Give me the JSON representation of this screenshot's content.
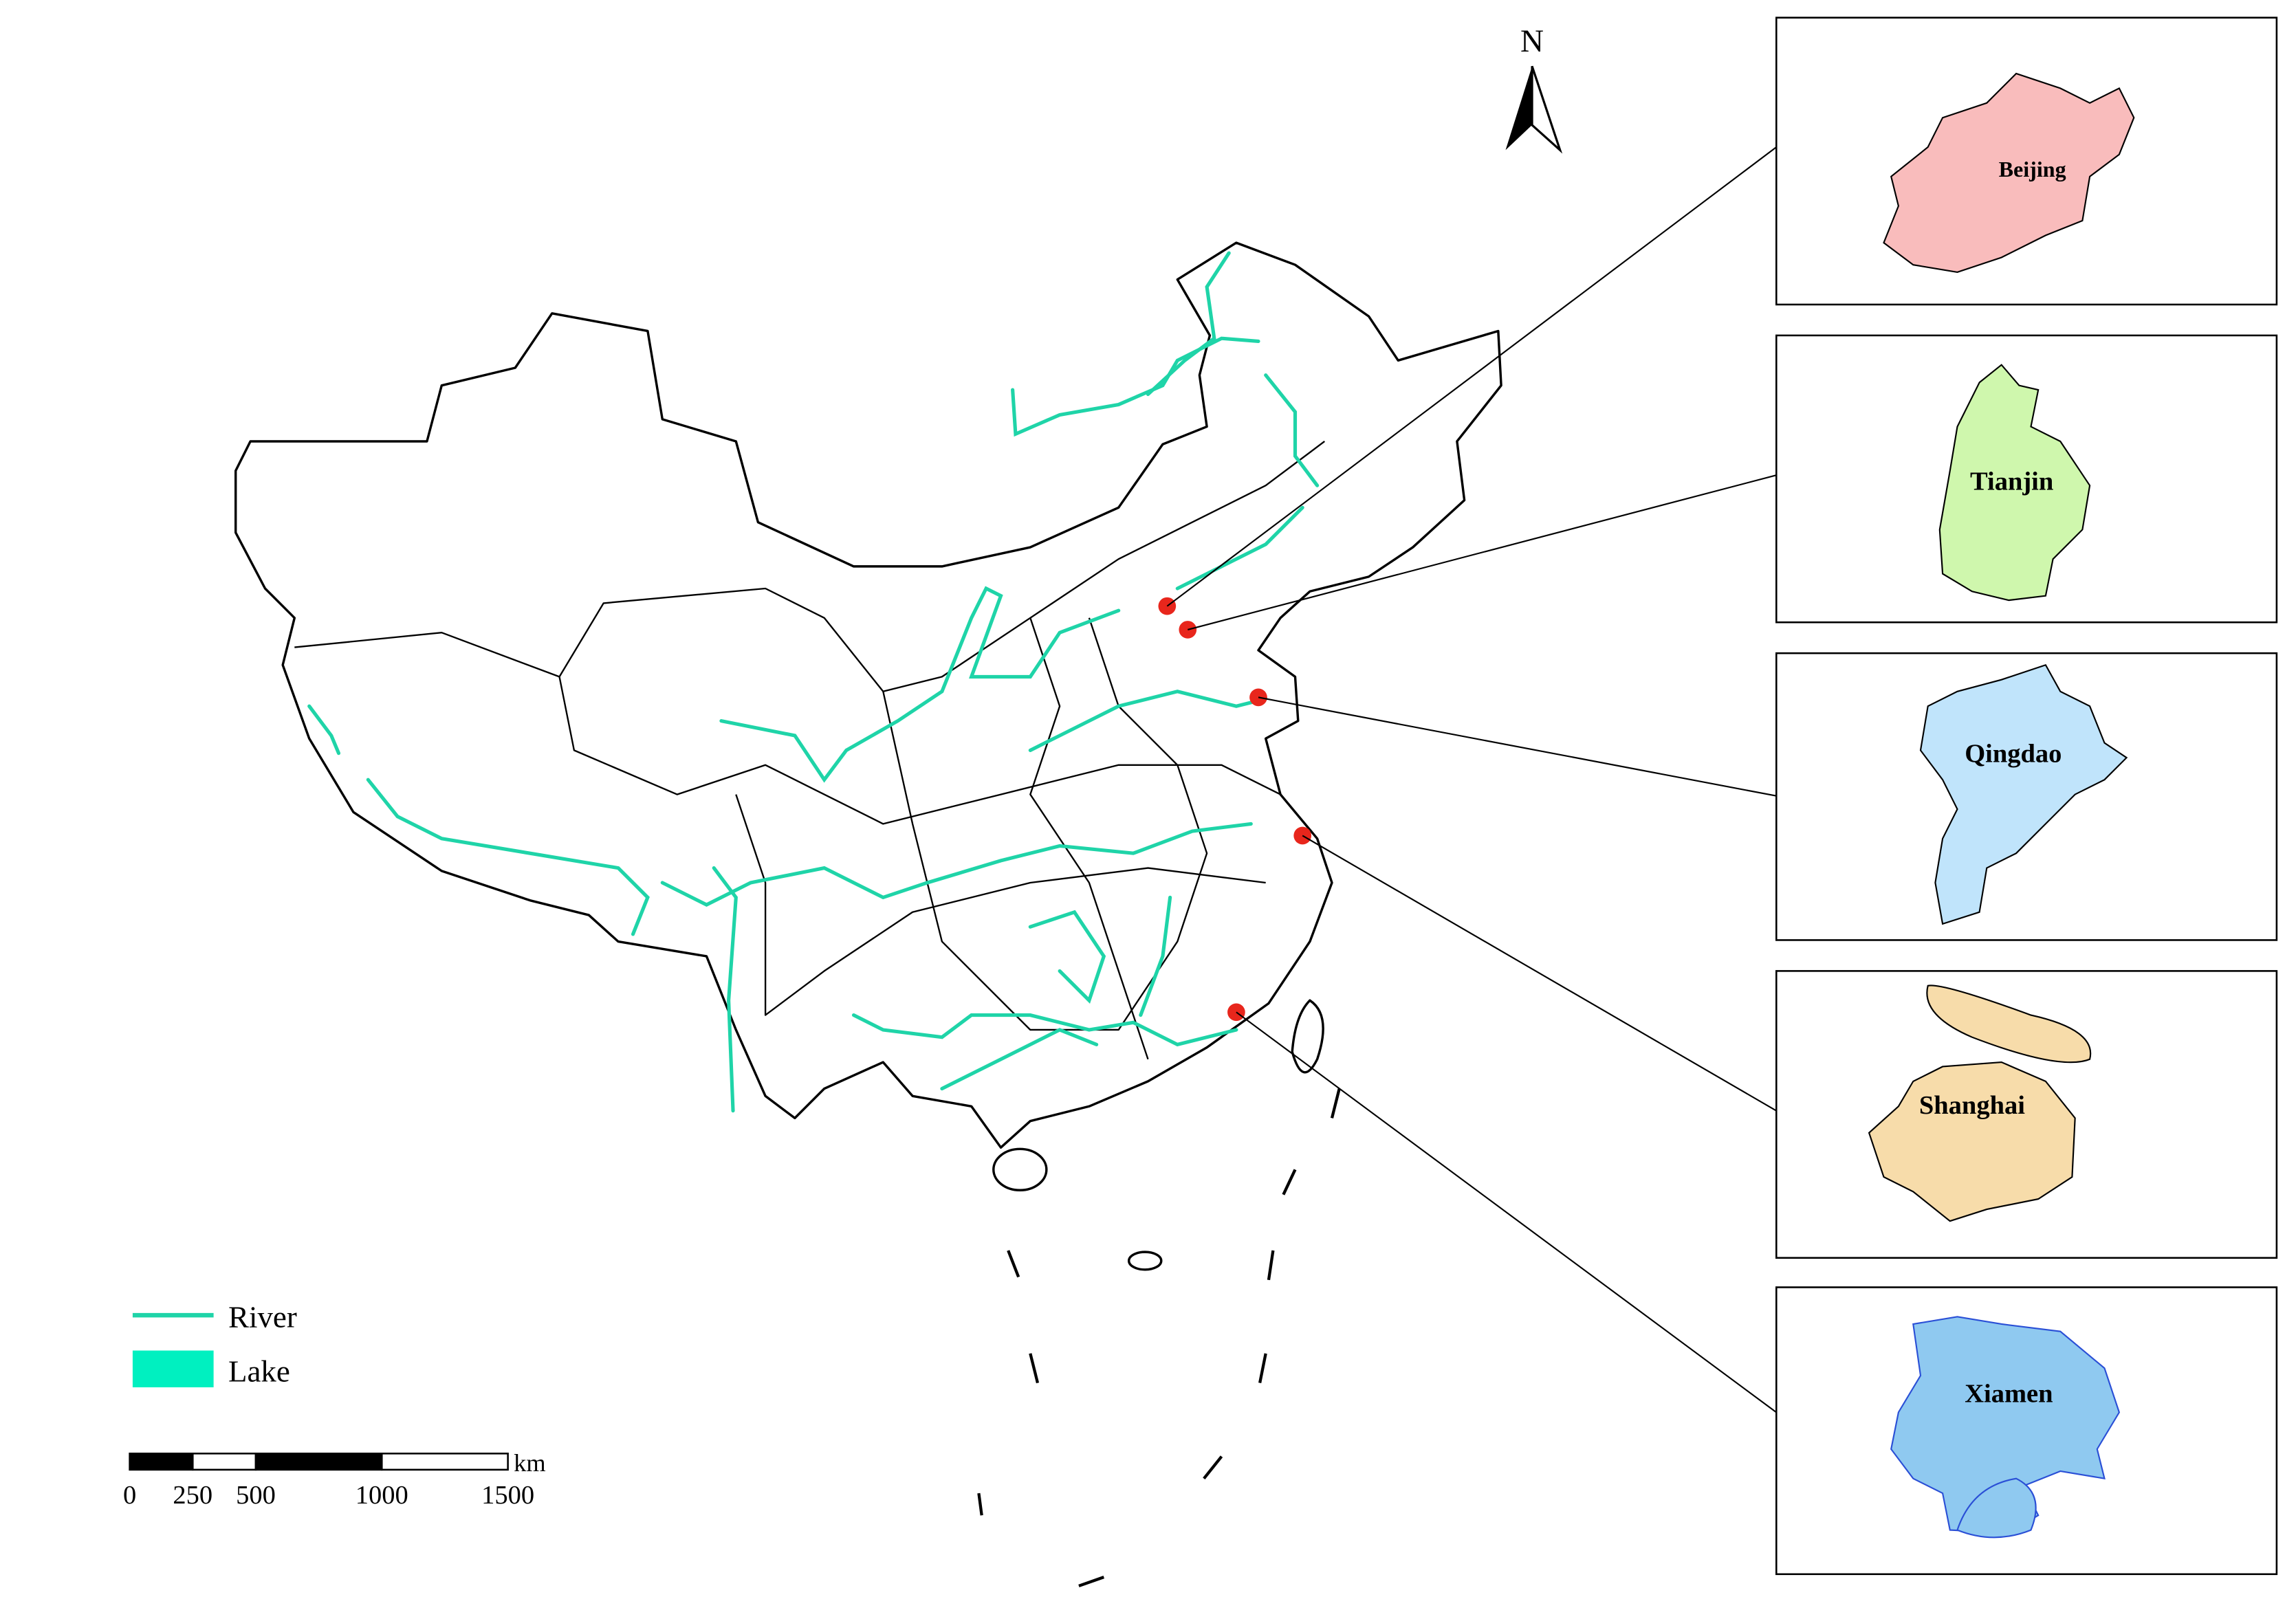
{
  "north_arrow": {
    "label": "N"
  },
  "legend": {
    "items": [
      {
        "label": "River",
        "color": "#1fd4a8"
      },
      {
        "label": "Lake",
        "color": "#00f0c0"
      }
    ]
  },
  "scale_bar": {
    "unit": "km",
    "ticks": [
      0,
      250,
      500,
      1000,
      1500
    ]
  },
  "insets": [
    {
      "label": "Beijing",
      "color": "#f9bcbc"
    },
    {
      "label": "Tianjin",
      "color": "#cff7ad"
    },
    {
      "label": "Qingdao",
      "color": "#c0e4fb"
    },
    {
      "label": "Shanghai",
      "color": "#f7dcaa"
    },
    {
      "label": "Xiamen",
      "color": "#8fc9f0"
    }
  ]
}
